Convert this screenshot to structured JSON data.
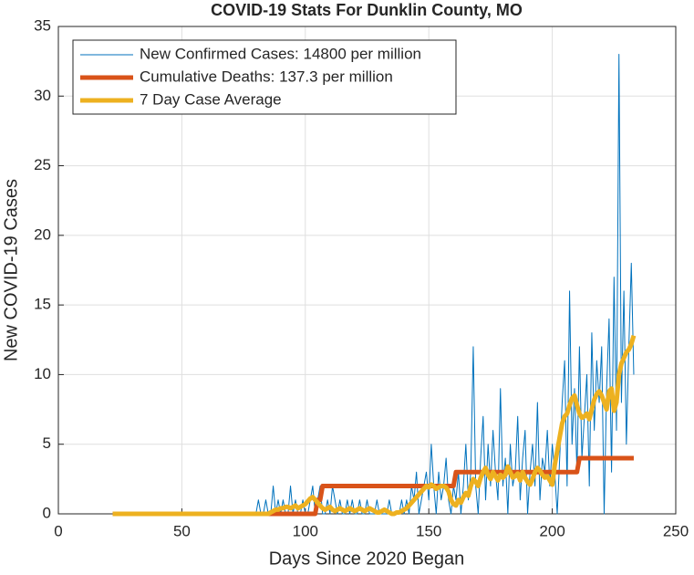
{
  "chart_data": {
    "type": "line",
    "title": "COVID-19 Stats For Dunklin County, MO",
    "xlabel": "Days Since 2020 Began",
    "ylabel": "New COVID-19 Cases",
    "xlim": [
      0,
      250
    ],
    "xticks": [
      0,
      50,
      100,
      150,
      200,
      250
    ],
    "ylim": [
      0,
      35
    ],
    "yticks": [
      0,
      5,
      10,
      15,
      20,
      25,
      30,
      35
    ],
    "grid": true,
    "legend_position": "upper left",
    "x": [
      22,
      23,
      24,
      25,
      26,
      27,
      28,
      29,
      30,
      31,
      32,
      33,
      34,
      35,
      36,
      37,
      38,
      39,
      40,
      41,
      42,
      43,
      44,
      45,
      46,
      47,
      48,
      49,
      50,
      51,
      52,
      53,
      54,
      55,
      56,
      57,
      58,
      59,
      60,
      61,
      62,
      63,
      64,
      65,
      66,
      67,
      68,
      69,
      70,
      71,
      72,
      73,
      74,
      75,
      76,
      77,
      78,
      79,
      80,
      81,
      82,
      83,
      84,
      85,
      86,
      87,
      88,
      89,
      90,
      91,
      92,
      93,
      94,
      95,
      96,
      97,
      98,
      99,
      100,
      101,
      102,
      103,
      104,
      105,
      106,
      107,
      108,
      109,
      110,
      111,
      112,
      113,
      114,
      115,
      116,
      117,
      118,
      119,
      120,
      121,
      122,
      123,
      124,
      125,
      126,
      127,
      128,
      129,
      130,
      131,
      132,
      133,
      134,
      135,
      136,
      137,
      138,
      139,
      140,
      141,
      142,
      143,
      144,
      145,
      146,
      147,
      148,
      149,
      150,
      151,
      152,
      153,
      154,
      155,
      156,
      157,
      158,
      159,
      160,
      161,
      162,
      163,
      164,
      165,
      166,
      167,
      168,
      169,
      170,
      171,
      172,
      173,
      174,
      175,
      176,
      177,
      178,
      179,
      180,
      181,
      182,
      183,
      184,
      185,
      186,
      187,
      188,
      189,
      190,
      191,
      192,
      193,
      194,
      195,
      196,
      197,
      198,
      199,
      200,
      201,
      202,
      203,
      204,
      205,
      206,
      207,
      208,
      209,
      210,
      211,
      212,
      213,
      214,
      215,
      216,
      217,
      218,
      219,
      220,
      221,
      222,
      223,
      224,
      225,
      226,
      227,
      228,
      229,
      230,
      231,
      232,
      233
    ],
    "series": [
      {
        "name": "New Confirmed Cases: 14800 per million",
        "color": "#0072bd",
        "width": 1,
        "values": [
          0,
          0,
          0,
          0,
          0,
          0,
          0,
          0,
          0,
          0,
          0,
          0,
          0,
          0,
          0,
          0,
          0,
          0,
          0,
          0,
          0,
          0,
          0,
          0,
          0,
          0,
          0,
          0,
          0,
          0,
          0,
          0,
          0,
          0,
          0,
          0,
          0,
          0,
          0,
          0,
          0,
          0,
          0,
          0,
          0,
          0,
          0,
          0,
          0,
          0,
          0,
          0,
          0,
          0,
          0,
          0,
          0,
          0,
          0,
          1,
          0,
          0,
          1,
          0,
          0,
          2,
          0,
          1,
          0,
          1,
          0,
          0,
          2,
          0,
          1,
          0,
          0,
          1,
          0,
          0,
          1,
          2,
          0,
          1,
          2,
          0,
          0,
          1,
          0,
          2,
          1,
          0,
          1,
          0,
          0,
          1,
          0,
          1,
          0,
          0,
          1,
          0,
          0,
          1,
          0,
          0,
          0,
          1,
          0,
          0,
          0,
          0,
          1,
          0,
          0,
          0,
          0,
          1,
          0,
          1,
          0,
          2,
          1,
          3,
          0,
          1,
          2,
          3,
          1,
          5,
          2,
          0,
          3,
          1,
          2,
          4,
          1,
          0,
          2,
          1,
          3,
          0,
          2,
          5,
          1,
          3,
          12,
          2,
          0,
          4,
          7,
          1,
          5,
          2,
          6,
          3,
          1,
          9,
          2,
          4,
          0,
          5,
          2,
          3,
          7,
          1,
          4,
          6,
          0,
          3,
          5,
          2,
          8,
          1,
          4,
          3,
          6,
          2,
          5,
          3,
          0,
          4,
          8,
          11,
          2,
          16,
          5,
          9,
          3,
          12,
          4,
          7,
          10,
          2,
          13,
          6,
          11,
          8,
          12,
          0,
          9,
          14,
          3,
          17,
          6,
          33,
          8,
          16,
          5,
          12,
          18,
          10
        ]
      },
      {
        "name": "Cumulative Deaths: 137.3 per million",
        "color": "#d95319",
        "width": 5,
        "values": [
          0,
          0,
          0,
          0,
          0,
          0,
          0,
          0,
          0,
          0,
          0,
          0,
          0,
          0,
          0,
          0,
          0,
          0,
          0,
          0,
          0,
          0,
          0,
          0,
          0,
          0,
          0,
          0,
          0,
          0,
          0,
          0,
          0,
          0,
          0,
          0,
          0,
          0,
          0,
          0,
          0,
          0,
          0,
          0,
          0,
          0,
          0,
          0,
          0,
          0,
          0,
          0,
          0,
          0,
          0,
          0,
          0,
          0,
          0,
          0,
          0,
          0,
          0,
          0,
          0,
          0,
          0,
          0,
          0,
          0,
          0,
          0,
          0,
          0,
          0,
          0,
          0,
          0,
          0,
          0,
          0,
          0,
          0,
          1,
          1,
          2,
          2,
          2,
          2,
          2,
          2,
          2,
          2,
          2,
          2,
          2,
          2,
          2,
          2,
          2,
          2,
          2,
          2,
          2,
          2,
          2,
          2,
          2,
          2,
          2,
          2,
          2,
          2,
          2,
          2,
          2,
          2,
          2,
          2,
          2,
          2,
          2,
          2,
          2,
          2,
          2,
          2,
          2,
          2,
          2,
          2,
          2,
          2,
          2,
          2,
          2,
          2,
          2,
          2,
          3,
          3,
          3,
          3,
          3,
          3,
          3,
          3,
          3,
          3,
          3,
          3,
          3,
          3,
          3,
          3,
          3,
          3,
          3,
          3,
          3,
          3,
          3,
          3,
          3,
          3,
          3,
          3,
          3,
          3,
          3,
          3,
          3,
          3,
          3,
          3,
          3,
          3,
          3,
          3,
          3,
          3,
          3,
          3,
          3,
          3,
          3,
          3,
          3,
          3,
          4,
          4,
          4,
          4,
          4,
          4,
          4,
          4,
          4,
          4,
          4,
          4,
          4,
          4,
          4,
          4,
          4,
          4,
          4,
          4,
          4,
          4,
          4
        ]
      },
      {
        "name": "7 Day Case Average",
        "color": "#edb120",
        "width": 5,
        "values": [
          0,
          0,
          0,
          0,
          0,
          0,
          0,
          0,
          0,
          0,
          0,
          0,
          0,
          0,
          0,
          0,
          0,
          0,
          0,
          0,
          0,
          0,
          0,
          0,
          0,
          0,
          0,
          0,
          0,
          0,
          0,
          0,
          0,
          0,
          0,
          0,
          0,
          0,
          0,
          0,
          0,
          0,
          0,
          0,
          0,
          0,
          0,
          0,
          0,
          0,
          0,
          0,
          0,
          0,
          0,
          0,
          0,
          0,
          0,
          0,
          0,
          0,
          0,
          0,
          0.1,
          0.2,
          0.3,
          0.3,
          0.4,
          0.4,
          0.5,
          0.5,
          0.4,
          0.5,
          0.6,
          0.4,
          0.5,
          0.6,
          0.7,
          0.9,
          1.1,
          1.2,
          1.0,
          0.8,
          0.6,
          0.4,
          0.3,
          0.4,
          0.5,
          0.3,
          0.2,
          0.3,
          0.4,
          0.3,
          0.2,
          0.3,
          0.4,
          0.3,
          0.2,
          0.3,
          0.4,
          0.3,
          0.2,
          0.3,
          0.4,
          0.3,
          0.2,
          0.1,
          0.1,
          0.2,
          0.3,
          0.2,
          0.1,
          0,
          0,
          0.1,
          0.1,
          0.2,
          0.3,
          0.4,
          0.6,
          0.8,
          1.0,
          1.2,
          1.4,
          1.6,
          1.8,
          2.0,
          1.9,
          2.1,
          2.0,
          1.8,
          1.9,
          2.0,
          2.0,
          1.9,
          1.6,
          1.0,
          0.7,
          0.6,
          1.0,
          0.8,
          1.2,
          1.5,
          1.3,
          2.0,
          2.5,
          2.3,
          2.0,
          2.6,
          3.0,
          3.3,
          2.8,
          2.5,
          3.0,
          2.7,
          2.4,
          2.8,
          2.6,
          2.8,
          3.4,
          3.0,
          2.6,
          2.7,
          2.9,
          2.4,
          3.0,
          2.6,
          2.3,
          2.1,
          2.5,
          3.0,
          3.3,
          3.1,
          2.8,
          2.6,
          2.7,
          2.4,
          2.1,
          3.5,
          4.5,
          5.5,
          6.5,
          7.0,
          7.2,
          7.8,
          8.3,
          8.5,
          7.8,
          7.2,
          6.9,
          7.0,
          7.2,
          6.8,
          7.5,
          8.2,
          8.6,
          8.8,
          8.5,
          8.0,
          7.5,
          8.8,
          9.0,
          7.4,
          8.0,
          10.0,
          10.8,
          11.2,
          11.6,
          11.8,
          12.2,
          12.8
        ]
      }
    ]
  }
}
